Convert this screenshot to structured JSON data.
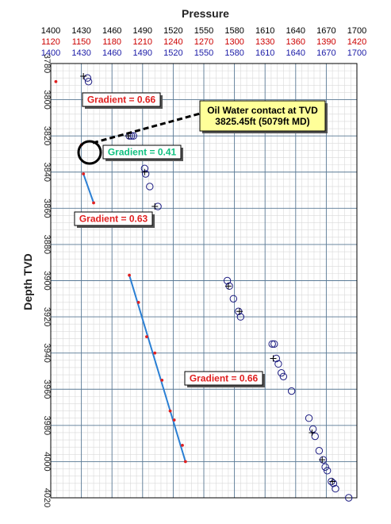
{
  "chart_data": {
    "type": "scatter",
    "title": "Pressure",
    "ylabel": "Depth TVD",
    "x_axes": [
      {
        "color": "#000000",
        "range": [
          1400,
          1700
        ],
        "ticks": [
          1400,
          1430,
          1460,
          1490,
          1520,
          1550,
          1580,
          1610,
          1640,
          1670,
          1700
        ]
      },
      {
        "color": "#cc0000",
        "range": [
          1120,
          1420
        ],
        "ticks": [
          1120,
          1150,
          1180,
          1210,
          1240,
          1270,
          1300,
          1330,
          1360,
          1390,
          1420
        ]
      },
      {
        "color": "#1a1aa6",
        "range": [
          1400,
          1700
        ],
        "ticks": [
          1400,
          1430,
          1460,
          1490,
          1520,
          1550,
          1580,
          1610,
          1640,
          1670,
          1700
        ]
      }
    ],
    "ylim": [
      3780,
      4020
    ],
    "yticks": [
      3780,
      3800,
      3820,
      3840,
      3860,
      3880,
      3900,
      3920,
      3940,
      3960,
      3980,
      4000,
      4020
    ],
    "grid": true,
    "circle_points": [
      [
        1436,
        3788
      ],
      [
        1437,
        3790
      ],
      [
        1477,
        3820
      ],
      [
        1479,
        3820
      ],
      [
        1481,
        3820
      ],
      [
        1492,
        3838
      ],
      [
        1493,
        3841
      ],
      [
        1497,
        3848
      ],
      [
        1505,
        3859
      ],
      [
        1573,
        3900
      ],
      [
        1575,
        3903
      ],
      [
        1579,
        3910
      ],
      [
        1584,
        3917
      ],
      [
        1586,
        3920
      ],
      [
        1617,
        3935
      ],
      [
        1619,
        3935
      ],
      [
        1621,
        3943
      ],
      [
        1623,
        3946
      ],
      [
        1626,
        3951
      ],
      [
        1628,
        3953
      ],
      [
        1636,
        3961
      ],
      [
        1653,
        3976
      ],
      [
        1657,
        3982
      ],
      [
        1659,
        3986
      ],
      [
        1663,
        3994
      ],
      [
        1667,
        3999
      ],
      [
        1669,
        4003
      ],
      [
        1671,
        4005
      ],
      [
        1675,
        4011
      ],
      [
        1677,
        4012
      ],
      [
        1679,
        4015
      ],
      [
        1692,
        4020
      ]
    ],
    "plus_points": [
      [
        1432,
        3787
      ],
      [
        1476,
        3820
      ],
      [
        1492,
        3840
      ],
      [
        1502,
        3859
      ],
      [
        1574,
        3903
      ],
      [
        1585,
        3917
      ],
      [
        1618,
        3943
      ],
      [
        1656,
        3984
      ],
      [
        1666,
        3999
      ],
      [
        1676,
        4011
      ]
    ],
    "red_points": [
      [
        1405,
        3790
      ],
      [
        1430,
        3825
      ],
      [
        1432,
        3841
      ],
      [
        1442,
        3857
      ],
      [
        1477,
        3897
      ],
      [
        1486,
        3912
      ],
      [
        1494,
        3931
      ],
      [
        1502,
        3940
      ],
      [
        1509,
        3955
      ],
      [
        1517,
        3972
      ],
      [
        1521,
        3977
      ],
      [
        1529,
        3991
      ],
      [
        1532,
        4000
      ]
    ],
    "gradient_lines": [
      {
        "points": [
          [
            1432,
            3841
          ],
          [
            1442,
            3857
          ]
        ]
      },
      {
        "points": [
          [
            1477,
            3897
          ],
          [
            1532,
            4000
          ]
        ]
      }
    ],
    "annotations": [
      {
        "text": "Gradient = 0.66",
        "color": "#e02020"
      },
      {
        "text": "Gradient = 0.41",
        "color": "#10c080"
      },
      {
        "text": "Gradient = 0.63",
        "color": "#e02020"
      },
      {
        "text": "Gradient = 0.66",
        "color": "#e02020"
      },
      {
        "text": "Oil Water contact at TVD\n3825.45ft (5079ft MD)",
        "color": "#000000",
        "background": "#ffff99"
      }
    ]
  }
}
